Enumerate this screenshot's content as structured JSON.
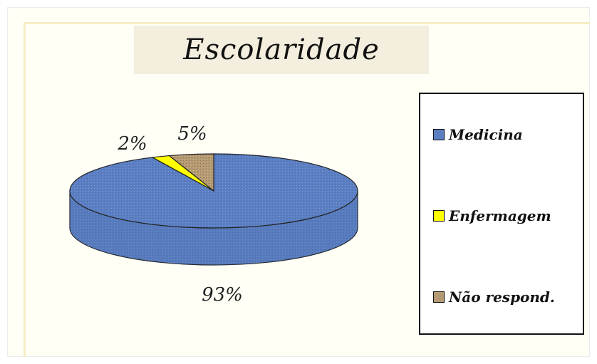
{
  "chart_data": {
    "type": "pie",
    "title": "Escolaridade",
    "slices": [
      {
        "label": "Medicina",
        "value": 93,
        "display": "93%",
        "color": "#5b7fc2"
      },
      {
        "label": "Enfermagem",
        "value": 2,
        "display": "2%",
        "color": "#ffff00"
      },
      {
        "label": "Não respond.",
        "value": 5,
        "display": "5%",
        "color": "#b49a72"
      }
    ],
    "legend_position": "right"
  }
}
